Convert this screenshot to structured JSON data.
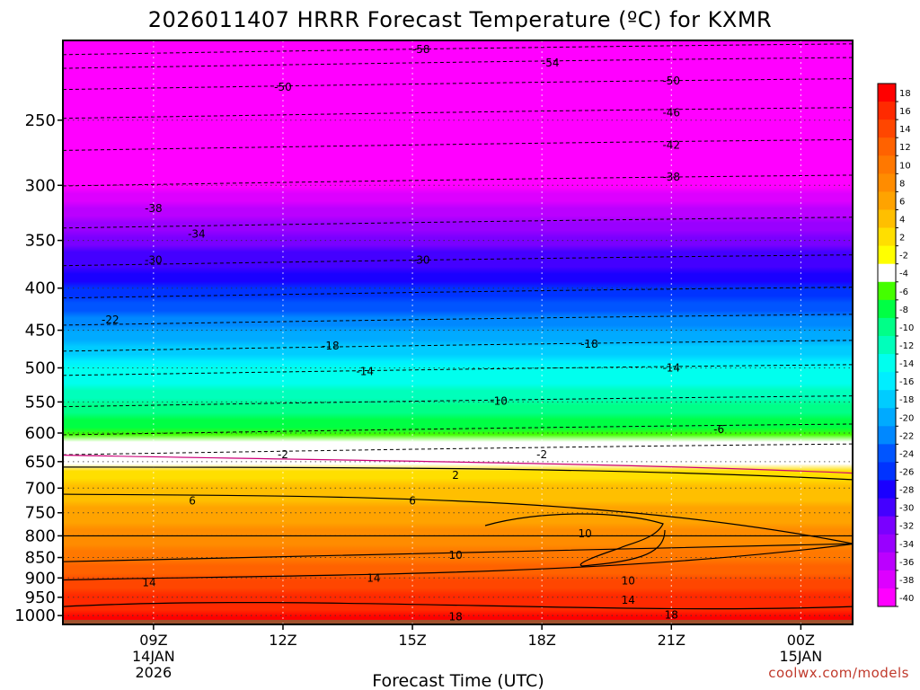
{
  "chart_data": {
    "type": "heatmap",
    "title": "2026011407 HRRR Forecast Temperature (ºC) for KXMR",
    "xlabel": "Forecast Time (UTC)",
    "ylabel": "",
    "x_hours": [
      9,
      12,
      15,
      18,
      21,
      24
    ],
    "xlim_hours": [
      6.9,
      25.2
    ],
    "x_ticks": [
      {
        "hour": 9,
        "lines": [
          "09Z",
          "14JAN",
          "2026"
        ]
      },
      {
        "hour": 12,
        "lines": [
          "12Z"
        ]
      },
      {
        "hour": 15,
        "lines": [
          "15Z"
        ]
      },
      {
        "hour": 18,
        "lines": [
          "18Z"
        ]
      },
      {
        "hour": 21,
        "lines": [
          "21Z"
        ]
      },
      {
        "hour": 24,
        "lines": [
          "00Z",
          "15JAN"
        ]
      }
    ],
    "y_ticks_hPa": [
      250,
      300,
      350,
      400,
      450,
      500,
      550,
      600,
      650,
      700,
      750,
      800,
      850,
      900,
      950,
      1000
    ],
    "ylim_hPa": [
      1025,
      200
    ],
    "y_scale": "log-pressure",
    "levels_hPa": [
      200,
      250,
      300,
      350,
      400,
      450,
      500,
      550,
      600,
      620,
      650,
      700,
      750,
      800,
      850,
      900,
      950,
      980,
      1000
    ],
    "temperature_profile": [
      -57,
      -48,
      -39,
      -31,
      -26,
      -20,
      -14,
      -10,
      -6,
      -1,
      1,
      5,
      7,
      9,
      11,
      14,
      17,
      17,
      19
    ],
    "colorbar": {
      "ticks": [
        18,
        16,
        14,
        12,
        10,
        8,
        6,
        4,
        2,
        -2,
        -4,
        -6,
        -8,
        -10,
        -12,
        -14,
        -16,
        -18,
        -20,
        -22,
        -24,
        -26,
        -28,
        -30,
        -32,
        -34,
        -36,
        -38,
        -40
      ],
      "colors": [
        "#ff0000",
        "#ff2a00",
        "#ff4600",
        "#ff6200",
        "#ff7800",
        "#ff8c00",
        "#ffa300",
        "#ffbf00",
        "#ffdf00",
        "#ffff00",
        "#ffffff",
        "#44ff00",
        "#00ff44",
        "#00ff88",
        "#00ffbb",
        "#00ffee",
        "#00eeff",
        "#00ccff",
        "#00aaff",
        "#0088ff",
        "#0055ff",
        "#0033ff",
        "#1a00ff",
        "#4400ff",
        "#7a00ff",
        "#9900ff",
        "#bb00ff",
        "#dd00ff",
        "#ff00ff"
      ]
    },
    "contour_labels": [
      {
        "text": "-58",
        "hour": 15.2,
        "hPa": 205
      },
      {
        "text": "-54",
        "hour": 18.2,
        "hPa": 213
      },
      {
        "text": "-50",
        "hour": 12.0,
        "hPa": 228
      },
      {
        "text": "-50",
        "hour": 21.0,
        "hPa": 224
      },
      {
        "text": "-46",
        "hour": 21.0,
        "hPa": 245
      },
      {
        "text": "-42",
        "hour": 21.0,
        "hPa": 268
      },
      {
        "text": "-38",
        "hour": 21.0,
        "hPa": 293
      },
      {
        "text": "-38",
        "hour": 9.0,
        "hPa": 320
      },
      {
        "text": "-34",
        "hour": 10.0,
        "hPa": 344
      },
      {
        "text": "-30",
        "hour": 9.0,
        "hPa": 370
      },
      {
        "text": "-30",
        "hour": 15.2,
        "hPa": 370
      },
      {
        "text": "-22",
        "hour": 8.0,
        "hPa": 437
      },
      {
        "text": "-18",
        "hour": 13.1,
        "hPa": 470
      },
      {
        "text": "-18",
        "hour": 19.1,
        "hPa": 468
      },
      {
        "text": "-14",
        "hour": 13.9,
        "hPa": 505
      },
      {
        "text": "-14",
        "hour": 21.0,
        "hPa": 500
      },
      {
        "text": "-10",
        "hour": 17.0,
        "hPa": 549
      },
      {
        "text": "-6",
        "hour": 22.1,
        "hPa": 594
      },
      {
        "text": "-2",
        "hour": 12.0,
        "hPa": 637
      },
      {
        "text": "-2",
        "hour": 18.0,
        "hPa": 637
      },
      {
        "text": "2",
        "hour": 16.0,
        "hPa": 675
      },
      {
        "text": "6",
        "hour": 9.9,
        "hPa": 725
      },
      {
        "text": "6",
        "hour": 15.0,
        "hPa": 725
      },
      {
        "text": "10",
        "hour": 19.0,
        "hPa": 795
      },
      {
        "text": "10",
        "hour": 16.0,
        "hPa": 845
      },
      {
        "text": "10",
        "hour": 20.0,
        "hPa": 907
      },
      {
        "text": "14",
        "hour": 8.9,
        "hPa": 912
      },
      {
        "text": "14",
        "hour": 14.1,
        "hPa": 900
      },
      {
        "text": "14",
        "hour": 20.0,
        "hPa": 958
      },
      {
        "text": "18",
        "hour": 16.0,
        "hPa": 1003
      },
      {
        "text": "18",
        "hour": 21.0,
        "hPa": 998
      }
    ],
    "grid": true,
    "legend_position": "right"
  },
  "credit": "coolwx.com/models",
  "colors": {
    "ground": "#a0522d",
    "freezing_line": "#cc0077",
    "credit": "#c0392b"
  }
}
